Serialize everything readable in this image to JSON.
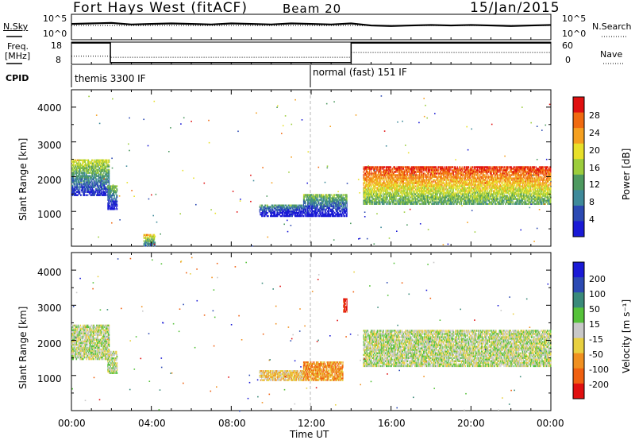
{
  "header": {
    "title": "Fort Hays West (fitACF)",
    "beam": "Beam 20",
    "date": "15/Jan/2015"
  },
  "top_panels": {
    "nsky_label": "N.Sky",
    "nsearch_label": "N.Search",
    "freq_label_1": "Freq.",
    "freq_label_2": "[MHz]",
    "nave_label": "Nave",
    "cpid_label": "CPID",
    "left_ticks_sky": [
      "10^5",
      "10^0"
    ],
    "right_ticks_sky": [
      "10^5",
      "10^0"
    ],
    "left_ticks_freq": [
      "18",
      "8"
    ],
    "right_ticks_freq": [
      "60",
      "0"
    ],
    "cpid_segments": [
      {
        "label": "themis 3300 IF",
        "start_hour": 0,
        "end_hour": 12
      },
      {
        "label": "normal (fast) 151 IF",
        "start_hour": 12,
        "end_hour": 24
      }
    ]
  },
  "axes": {
    "ylabel": "Slant Range [km]",
    "xlabel": "Time UT",
    "x_ticks": [
      "00:00",
      "04:00",
      "08:00",
      "12:00",
      "16:00",
      "20:00",
      "00:00"
    ],
    "y_ticks": [
      "1000",
      "2000",
      "3000",
      "4000"
    ]
  },
  "chart_data": [
    {
      "type": "line",
      "panel": "nsky-nsearch",
      "x_range_hours": [
        0,
        24
      ],
      "series": [
        {
          "name": "N.Sky",
          "x": [
            0,
            1,
            2,
            3,
            4,
            5,
            6,
            7,
            8,
            9,
            10,
            11,
            12,
            13,
            14,
            15,
            16,
            17,
            18,
            19,
            20,
            21,
            22,
            23,
            24
          ],
          "y": [
            3.1,
            3.2,
            3.3,
            3.0,
            3.1,
            3.2,
            3.1,
            3.0,
            3.2,
            3.1,
            3.0,
            3.2,
            3.1,
            3.0,
            3.2,
            2.8,
            2.7,
            2.8,
            2.9,
            2.8,
            2.9,
            2.8,
            2.7,
            2.8,
            2.9
          ]
        },
        {
          "name": "N.Search",
          "x": [
            0,
            24
          ],
          "y": [
            2.8,
            2.8
          ]
        }
      ]
    },
    {
      "type": "line",
      "panel": "freq-nave",
      "x_range_hours": [
        0,
        24
      ],
      "series": [
        {
          "name": "Freq.",
          "x": [
            0,
            1.95,
            1.95,
            14.0,
            14.0,
            24
          ],
          "y": [
            17.6,
            17.6,
            8.8,
            8.8,
            17.6,
            17.6
          ]
        },
        {
          "name": "Nave",
          "x": [
            0,
            1.95,
            1.95,
            14.0,
            14.0,
            24
          ],
          "y": [
            22,
            22,
            19,
            19,
            32,
            32
          ]
        }
      ]
    },
    {
      "type": "heatmap",
      "panel": "power",
      "colorbar_label": "Power [dB]",
      "colorbar_ticks": [
        "4",
        "8",
        "12",
        "16",
        "20",
        "24",
        "28"
      ],
      "colors": [
        "#1a1ad6",
        "#2c4ab3",
        "#3f8a9a",
        "#4e9a60",
        "#9ccd3c",
        "#e8e02a",
        "#f5a020",
        "#f06a10",
        "#e01010"
      ],
      "x_range_hours": [
        0,
        24
      ],
      "y_range_km": [
        0,
        4500
      ],
      "regions": [
        {
          "t0": 0.0,
          "t1": 1.9,
          "r0": 1450,
          "r1": 2500,
          "level": 3
        },
        {
          "t0": 1.8,
          "t1": 2.3,
          "r0": 1050,
          "r1": 1750,
          "level": 2
        },
        {
          "t0": 9.4,
          "t1": 11.6,
          "r0": 850,
          "r1": 1200,
          "level": 1
        },
        {
          "t0": 11.6,
          "t1": 13.8,
          "r0": 850,
          "r1": 1500,
          "level": 2
        },
        {
          "t0": 14.6,
          "t1": 24.0,
          "r0": 1200,
          "r1": 2300,
          "level": 6
        },
        {
          "t0": 3.6,
          "t1": 4.2,
          "r0": 0,
          "r1": 350,
          "level": 4
        }
      ]
    },
    {
      "type": "heatmap",
      "panel": "velocity",
      "colorbar_label": "Velocity [m s⁻¹]",
      "colorbar_ticks": [
        "200",
        "100",
        "50",
        "15",
        "-15",
        "-50",
        "-100",
        "-200"
      ],
      "colors": [
        "#1a1ad6",
        "#2c4ab3",
        "#3a8a7a",
        "#56c23a",
        "#c8c8c8",
        "#e8d040",
        "#f09020",
        "#f06010",
        "#e01010"
      ],
      "x_range_hours": [
        0,
        24
      ],
      "y_range_km": [
        0,
        4500
      ],
      "regions": [
        {
          "t0": 0.0,
          "t1": 1.9,
          "r0": 1450,
          "r1": 2450,
          "level": 4
        },
        {
          "t0": 1.8,
          "t1": 2.3,
          "r0": 1050,
          "r1": 1700,
          "level": 4
        },
        {
          "t0": 9.4,
          "t1": 11.6,
          "r0": 850,
          "r1": 1150,
          "level": 5
        },
        {
          "t0": 11.6,
          "t1": 13.6,
          "r0": 850,
          "r1": 1400,
          "level": 6
        },
        {
          "t0": 14.6,
          "t1": 24.0,
          "r0": 1250,
          "r1": 2300,
          "level": 4
        },
        {
          "t0": 13.6,
          "t1": 13.8,
          "r0": 2800,
          "r1": 3200,
          "level": 8
        }
      ]
    }
  ]
}
